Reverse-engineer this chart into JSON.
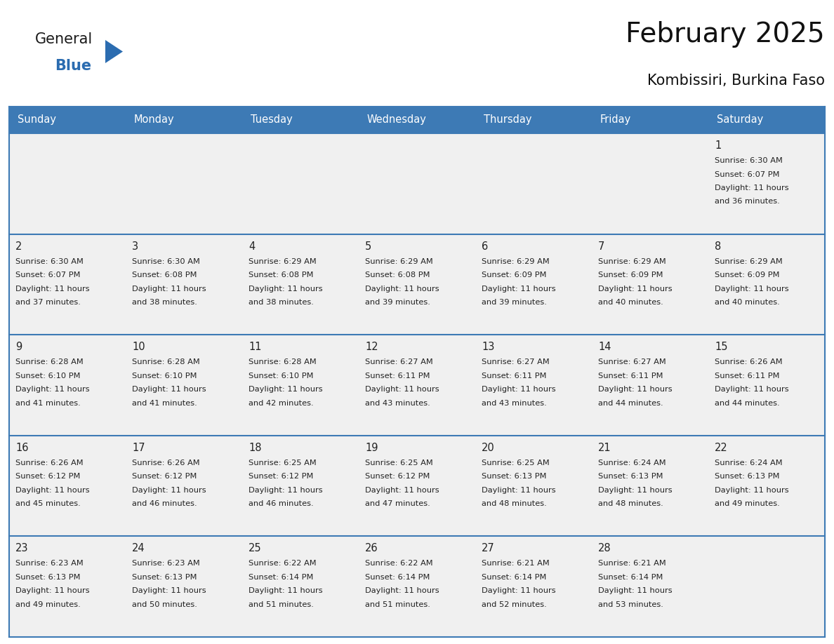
{
  "title": "February 2025",
  "subtitle": "Kombissiri, Burkina Faso",
  "header_bg_color": "#3d7ab5",
  "header_text_color": "#ffffff",
  "day_names": [
    "Sunday",
    "Monday",
    "Tuesday",
    "Wednesday",
    "Thursday",
    "Friday",
    "Saturday"
  ],
  "cell_bg_color": "#f0f0f0",
  "cell_border_color": "#3d7ab5",
  "day_num_color": "#222222",
  "text_color": "#222222",
  "logo_general_color": "#1a1a1a",
  "logo_blue_color": "#2b6cb0",
  "background_color": "#ffffff",
  "calendar": [
    [
      null,
      null,
      null,
      null,
      null,
      null,
      1
    ],
    [
      2,
      3,
      4,
      5,
      6,
      7,
      8
    ],
    [
      9,
      10,
      11,
      12,
      13,
      14,
      15
    ],
    [
      16,
      17,
      18,
      19,
      20,
      21,
      22
    ],
    [
      23,
      24,
      25,
      26,
      27,
      28,
      null
    ]
  ],
  "sunrise_data": {
    "1": [
      "Sunrise: 6:30 AM",
      "Sunset: 6:07 PM",
      "Daylight: 11 hours",
      "and 36 minutes."
    ],
    "2": [
      "Sunrise: 6:30 AM",
      "Sunset: 6:07 PM",
      "Daylight: 11 hours",
      "and 37 minutes."
    ],
    "3": [
      "Sunrise: 6:30 AM",
      "Sunset: 6:08 PM",
      "Daylight: 11 hours",
      "and 38 minutes."
    ],
    "4": [
      "Sunrise: 6:29 AM",
      "Sunset: 6:08 PM",
      "Daylight: 11 hours",
      "and 38 minutes."
    ],
    "5": [
      "Sunrise: 6:29 AM",
      "Sunset: 6:08 PM",
      "Daylight: 11 hours",
      "and 39 minutes."
    ],
    "6": [
      "Sunrise: 6:29 AM",
      "Sunset: 6:09 PM",
      "Daylight: 11 hours",
      "and 39 minutes."
    ],
    "7": [
      "Sunrise: 6:29 AM",
      "Sunset: 6:09 PM",
      "Daylight: 11 hours",
      "and 40 minutes."
    ],
    "8": [
      "Sunrise: 6:29 AM",
      "Sunset: 6:09 PM",
      "Daylight: 11 hours",
      "and 40 minutes."
    ],
    "9": [
      "Sunrise: 6:28 AM",
      "Sunset: 6:10 PM",
      "Daylight: 11 hours",
      "and 41 minutes."
    ],
    "10": [
      "Sunrise: 6:28 AM",
      "Sunset: 6:10 PM",
      "Daylight: 11 hours",
      "and 41 minutes."
    ],
    "11": [
      "Sunrise: 6:28 AM",
      "Sunset: 6:10 PM",
      "Daylight: 11 hours",
      "and 42 minutes."
    ],
    "12": [
      "Sunrise: 6:27 AM",
      "Sunset: 6:11 PM",
      "Daylight: 11 hours",
      "and 43 minutes."
    ],
    "13": [
      "Sunrise: 6:27 AM",
      "Sunset: 6:11 PM",
      "Daylight: 11 hours",
      "and 43 minutes."
    ],
    "14": [
      "Sunrise: 6:27 AM",
      "Sunset: 6:11 PM",
      "Daylight: 11 hours",
      "and 44 minutes."
    ],
    "15": [
      "Sunrise: 6:26 AM",
      "Sunset: 6:11 PM",
      "Daylight: 11 hours",
      "and 44 minutes."
    ],
    "16": [
      "Sunrise: 6:26 AM",
      "Sunset: 6:12 PM",
      "Daylight: 11 hours",
      "and 45 minutes."
    ],
    "17": [
      "Sunrise: 6:26 AM",
      "Sunset: 6:12 PM",
      "Daylight: 11 hours",
      "and 46 minutes."
    ],
    "18": [
      "Sunrise: 6:25 AM",
      "Sunset: 6:12 PM",
      "Daylight: 11 hours",
      "and 46 minutes."
    ],
    "19": [
      "Sunrise: 6:25 AM",
      "Sunset: 6:12 PM",
      "Daylight: 11 hours",
      "and 47 minutes."
    ],
    "20": [
      "Sunrise: 6:25 AM",
      "Sunset: 6:13 PM",
      "Daylight: 11 hours",
      "and 48 minutes."
    ],
    "21": [
      "Sunrise: 6:24 AM",
      "Sunset: 6:13 PM",
      "Daylight: 11 hours",
      "and 48 minutes."
    ],
    "22": [
      "Sunrise: 6:24 AM",
      "Sunset: 6:13 PM",
      "Daylight: 11 hours",
      "and 49 minutes."
    ],
    "23": [
      "Sunrise: 6:23 AM",
      "Sunset: 6:13 PM",
      "Daylight: 11 hours",
      "and 49 minutes."
    ],
    "24": [
      "Sunrise: 6:23 AM",
      "Sunset: 6:13 PM",
      "Daylight: 11 hours",
      "and 50 minutes."
    ],
    "25": [
      "Sunrise: 6:22 AM",
      "Sunset: 6:14 PM",
      "Daylight: 11 hours",
      "and 51 minutes."
    ],
    "26": [
      "Sunrise: 6:22 AM",
      "Sunset: 6:14 PM",
      "Daylight: 11 hours",
      "and 51 minutes."
    ],
    "27": [
      "Sunrise: 6:21 AM",
      "Sunset: 6:14 PM",
      "Daylight: 11 hours",
      "and 52 minutes."
    ],
    "28": [
      "Sunrise: 6:21 AM",
      "Sunset: 6:14 PM",
      "Daylight: 11 hours",
      "and 53 minutes."
    ]
  }
}
